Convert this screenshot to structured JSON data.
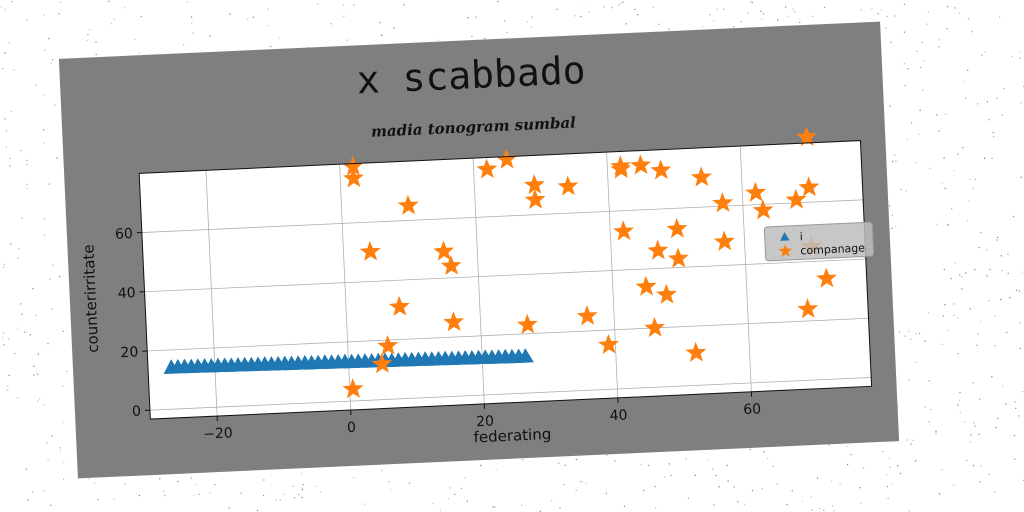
{
  "chart_data": {
    "type": "scatter",
    "title": "x scabbado",
    "subtitle": "madia tonogram sumbal",
    "xlabel": "federating",
    "ylabel": "counterirritate",
    "xlim": [
      -30,
      78
    ],
    "ylim": [
      -3,
      80
    ],
    "xticks": [
      -20,
      0,
      20,
      40,
      60
    ],
    "yticks": [
      0,
      20,
      40,
      60
    ],
    "grid": true,
    "legend_position": "right",
    "series": [
      {
        "name": "i",
        "marker": "triangle",
        "color": "#1f77b4",
        "x": [
          -26.5,
          -25.5,
          -24.5,
          -23.5,
          -22.5,
          -21.5,
          -20.5,
          -19.5,
          -18.5,
          -17.5,
          -16.5,
          -15.5,
          -14.5,
          -13.5,
          -12.5,
          -11.5,
          -10.5,
          -9.5,
          -8.5,
          -7.5,
          -6.5,
          -5.5,
          -4.5,
          -3.5,
          -2.5,
          -1.5,
          -0.5,
          0.5,
          1.5,
          2.5,
          3.5,
          4.5,
          5.5,
          6.5,
          7.5,
          8.5,
          9.5,
          10.5,
          11.5,
          12.5,
          13.5,
          14.5,
          15.5,
          16.5,
          17.5,
          18.5,
          19.5,
          20.5,
          21.5,
          22.5,
          23.5,
          24.5,
          25.5,
          26.5
        ],
        "y": [
          14.0,
          14.0,
          14.0,
          13.9,
          13.9,
          13.9,
          13.8,
          13.8,
          13.8,
          13.7,
          13.7,
          13.7,
          13.6,
          13.6,
          13.6,
          13.5,
          13.5,
          13.5,
          13.4,
          13.4,
          13.4,
          13.3,
          13.3,
          13.3,
          13.2,
          13.2,
          13.2,
          13.1,
          13.1,
          13.1,
          13.0,
          13.0,
          13.0,
          12.9,
          12.9,
          12.9,
          12.8,
          12.8,
          12.8,
          12.7,
          12.7,
          12.7,
          12.6,
          12.6,
          12.6,
          12.5,
          12.5,
          12.5,
          12.4,
          12.4,
          12.4,
          12.3,
          12.3,
          12.3
        ]
      },
      {
        "name": "companage",
        "marker": "star",
        "color": "#ff7f0e",
        "x": [
          2,
          2,
          22,
          25,
          10,
          4,
          15,
          16,
          8,
          16,
          6,
          5,
          0.5,
          29,
          29,
          34,
          27,
          36,
          39,
          42,
          42,
          45,
          48,
          42,
          47,
          45,
          50,
          50,
          46,
          48,
          52,
          54,
          57,
          57,
          62,
          63,
          68,
          70,
          70,
          69,
          72,
          70
        ],
        "y": [
          79,
          75,
          76,
          79,
          65,
          50,
          49,
          44,
          31,
          25,
          18,
          12,
          4,
          70,
          65,
          69,
          23,
          25,
          15,
          75,
          74,
          75,
          73,
          53,
          46,
          34,
          53,
          43,
          20,
          31,
          11,
          70,
          61,
          48,
          64,
          58,
          61,
          65,
          45,
          24,
          34,
          82
        ]
      }
    ]
  }
}
